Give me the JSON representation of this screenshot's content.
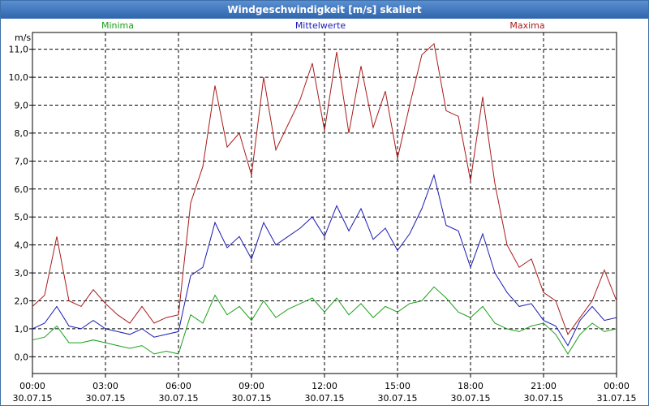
{
  "window": {
    "title": "Windgeschwindigkeit [m/s] skaliert"
  },
  "legend": [
    {
      "name": "Minima",
      "color": "#1aa01a"
    },
    {
      "name": "Mittelwerte",
      "color": "#1a1ab4"
    },
    {
      "name": "Maxima",
      "color": "#aa1a1a"
    }
  ],
  "chart_data": {
    "type": "line",
    "title": "Windgeschwindigkeit [m/s] skaliert",
    "ylabel": "m/s",
    "xlabel": "",
    "ylim": [
      -0.6,
      11.6
    ],
    "xlim": [
      0,
      24
    ],
    "grid": true,
    "legend_position": "top",
    "y_ticks": [
      "0,0",
      "1,0",
      "2,0",
      "3,0",
      "4,0",
      "5,0",
      "6,0",
      "7,0",
      "8,0",
      "9,0",
      "10,0",
      "11,0"
    ],
    "x_ticks": [
      {
        "time": "00:00",
        "date": "30.07.15"
      },
      {
        "time": "03:00",
        "date": "30.07.15"
      },
      {
        "time": "06:00",
        "date": "30.07.15"
      },
      {
        "time": "09:00",
        "date": "30.07.15"
      },
      {
        "time": "12:00",
        "date": "30.07.15"
      },
      {
        "time": "15:00",
        "date": "30.07.15"
      },
      {
        "time": "18:00",
        "date": "30.07.15"
      },
      {
        "time": "21:00",
        "date": "30.07.15"
      },
      {
        "time": "00:00",
        "date": "31.07.15"
      }
    ],
    "series": [
      {
        "name": "Maxima",
        "x": [
          0,
          0.5,
          1,
          1.5,
          2,
          2.5,
          3,
          3.5,
          4,
          4.5,
          5,
          5.5,
          6,
          6.5,
          7,
          7.5,
          8,
          8.5,
          9,
          9.5,
          10,
          10.5,
          11,
          11.5,
          12,
          12.5,
          13,
          13.5,
          14,
          14.5,
          15,
          15.5,
          16,
          16.5,
          17,
          17.5,
          18,
          18.5,
          19,
          19.5,
          20,
          20.5,
          21,
          21.5,
          22,
          22.5,
          23,
          23.5,
          24
        ],
        "values": [
          1.8,
          2.2,
          4.3,
          2.0,
          1.8,
          2.4,
          1.9,
          1.5,
          1.2,
          1.8,
          1.2,
          1.4,
          1.5,
          5.5,
          6.8,
          9.7,
          7.5,
          8.0,
          6.5,
          10.0,
          7.4,
          8.3,
          9.2,
          10.5,
          8.1,
          10.9,
          8.0,
          10.4,
          8.2,
          9.5,
          7.1,
          9.0,
          10.8,
          11.2,
          8.8,
          8.6,
          6.3,
          9.3,
          6.2,
          4.0,
          3.2,
          3.5,
          2.3,
          2.0,
          0.8,
          1.4,
          2.0,
          3.1,
          2.0
        ]
      },
      {
        "name": "Mittelwerte",
        "x": [
          0,
          0.5,
          1,
          1.5,
          2,
          2.5,
          3,
          3.5,
          4,
          4.5,
          5,
          5.5,
          6,
          6.5,
          7,
          7.5,
          8,
          8.5,
          9,
          9.5,
          10,
          10.5,
          11,
          11.5,
          12,
          12.5,
          13,
          13.5,
          14,
          14.5,
          15,
          15.5,
          16,
          16.5,
          17,
          17.5,
          18,
          18.5,
          19,
          19.5,
          20,
          20.5,
          21,
          21.5,
          22,
          22.5,
          23,
          23.5,
          24
        ],
        "values": [
          1.0,
          1.2,
          1.8,
          1.1,
          1.0,
          1.3,
          1.0,
          0.9,
          0.8,
          1.0,
          0.7,
          0.8,
          0.9,
          2.9,
          3.2,
          4.8,
          3.9,
          4.3,
          3.5,
          4.8,
          4.0,
          4.3,
          4.6,
          5.0,
          4.3,
          5.4,
          4.5,
          5.3,
          4.2,
          4.6,
          3.8,
          4.4,
          5.3,
          6.5,
          4.7,
          4.5,
          3.2,
          4.4,
          3.0,
          2.3,
          1.8,
          1.9,
          1.3,
          1.1,
          0.4,
          1.3,
          1.8,
          1.3,
          1.4
        ]
      },
      {
        "name": "Minima",
        "x": [
          0,
          0.5,
          1,
          1.5,
          2,
          2.5,
          3,
          3.5,
          4,
          4.5,
          5,
          5.5,
          6,
          6.5,
          7,
          7.5,
          8,
          8.5,
          9,
          9.5,
          10,
          10.5,
          11,
          11.5,
          12,
          12.5,
          13,
          13.5,
          14,
          14.5,
          15,
          15.5,
          16,
          16.5,
          17,
          17.5,
          18,
          18.5,
          19,
          19.5,
          20,
          20.5,
          21,
          21.5,
          22,
          22.5,
          23,
          23.5,
          24
        ],
        "values": [
          0.6,
          0.7,
          1.1,
          0.5,
          0.5,
          0.6,
          0.5,
          0.4,
          0.3,
          0.4,
          0.1,
          0.2,
          0.1,
          1.5,
          1.2,
          2.2,
          1.5,
          1.8,
          1.3,
          2.0,
          1.4,
          1.7,
          1.9,
          2.1,
          1.6,
          2.1,
          1.5,
          1.9,
          1.4,
          1.8,
          1.6,
          1.9,
          2.0,
          2.5,
          2.1,
          1.6,
          1.4,
          1.8,
          1.2,
          1.0,
          0.9,
          1.1,
          1.2,
          0.8,
          0.1,
          0.8,
          1.2,
          0.9,
          1.0
        ]
      }
    ]
  }
}
